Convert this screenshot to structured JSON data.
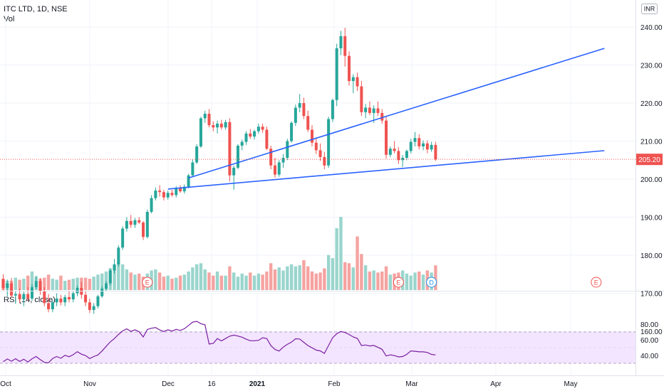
{
  "header": {
    "symbol": "ITC LTD, 1D, NSE",
    "volume_label": "Vol",
    "currency_badge": "INR"
  },
  "rsi_panel": {
    "label": "RSI (14, close)"
  },
  "chart_data": [
    {
      "type": "candlestick",
      "title": "ITC LTD, 1D, NSE",
      "y_axis_ticks": [
        "240.00",
        "230.00",
        "220.00",
        "210.00",
        "200.00",
        "190.00",
        "180.00",
        "170.00",
        "160.00"
      ],
      "x_axis_ticks": [
        "Oct",
        "Nov",
        "Dec",
        "16",
        "2021",
        "Feb",
        "Mar",
        "Apr",
        "May"
      ],
      "ylim": [
        155,
        244
      ],
      "last_price_label": "205.20",
      "last_price": 205.2,
      "grid": true,
      "colors": {
        "up": "#26a69a",
        "down": "#ef5350",
        "trendline": "#2962ff",
        "price_line": "#ef5350"
      },
      "ohlc": [
        [
          173.8,
          175.0,
          170.8,
          171.4
        ],
        [
          171.4,
          173.6,
          169.2,
          172.6
        ],
        [
          172.6,
          174.0,
          168.8,
          169.4
        ],
        [
          169.4,
          170.6,
          167.2,
          169.8
        ],
        [
          169.8,
          171.2,
          167.4,
          168.4
        ],
        [
          168.4,
          170.4,
          166.6,
          169.8
        ],
        [
          169.8,
          171.6,
          168.0,
          168.6
        ],
        [
          168.6,
          172.4,
          168.0,
          171.6
        ],
        [
          171.6,
          174.6,
          171.0,
          173.2
        ],
        [
          173.2,
          174.0,
          169.6,
          170.6
        ],
        [
          170.6,
          171.6,
          166.6,
          167.4
        ],
        [
          167.4,
          169.8,
          165.0,
          165.8
        ],
        [
          165.8,
          168.2,
          165.0,
          167.6
        ],
        [
          167.6,
          170.0,
          166.6,
          168.6
        ],
        [
          168.6,
          169.6,
          166.8,
          167.6
        ],
        [
          167.6,
          169.6,
          166.6,
          169.0
        ],
        [
          169.0,
          170.6,
          167.6,
          168.4
        ],
        [
          168.4,
          170.6,
          167.6,
          170.0
        ],
        [
          170.0,
          172.0,
          169.2,
          171.4
        ],
        [
          171.4,
          173.0,
          168.6,
          169.6
        ],
        [
          169.6,
          170.6,
          166.6,
          167.6
        ],
        [
          167.6,
          168.6,
          164.8,
          165.6
        ],
        [
          165.6,
          167.4,
          164.6,
          166.6
        ],
        [
          166.6,
          169.6,
          166.0,
          169.2
        ],
        [
          169.2,
          171.8,
          168.8,
          171.2
        ],
        [
          171.2,
          173.2,
          170.6,
          172.6
        ],
        [
          172.6,
          176.6,
          172.0,
          176.0
        ],
        [
          176.0,
          179.0,
          175.2,
          177.6
        ],
        [
          177.6,
          182.6,
          177.0,
          182.0
        ],
        [
          182.0,
          187.6,
          181.4,
          187.0
        ],
        [
          187.0,
          190.0,
          186.2,
          189.0
        ],
        [
          189.0,
          190.6,
          187.2,
          188.0
        ],
        [
          188.0,
          189.8,
          187.2,
          189.2
        ],
        [
          189.2,
          190.0,
          188.2,
          188.6
        ],
        [
          188.6,
          189.0,
          184.0,
          184.8
        ],
        [
          184.8,
          192.0,
          184.4,
          191.4
        ],
        [
          191.4,
          195.8,
          191.0,
          195.0
        ],
        [
          195.0,
          197.8,
          194.4,
          197.0
        ],
        [
          197.0,
          198.4,
          195.4,
          196.6
        ],
        [
          196.6,
          197.2,
          194.4,
          195.2
        ],
        [
          195.2,
          197.0,
          194.6,
          196.4
        ],
        [
          196.4,
          197.2,
          195.4,
          195.8
        ],
        [
          195.8,
          198.2,
          195.2,
          197.6
        ],
        [
          197.6,
          198.4,
          196.4,
          196.8
        ],
        [
          196.8,
          198.6,
          196.2,
          198.0
        ],
        [
          198.0,
          201.4,
          197.6,
          201.0
        ],
        [
          201.0,
          205.2,
          200.6,
          204.4
        ],
        [
          204.4,
          209.2,
          204.0,
          208.6
        ],
        [
          208.6,
          216.4,
          208.2,
          216.0
        ],
        [
          216.0,
          218.0,
          214.8,
          217.2
        ],
        [
          217.2,
          218.4,
          213.6,
          214.2
        ],
        [
          214.2,
          215.2,
          212.6,
          213.6
        ],
        [
          213.6,
          215.4,
          212.0,
          214.6
        ],
        [
          214.6,
          215.6,
          213.0,
          213.6
        ],
        [
          213.6,
          215.6,
          213.0,
          215.0
        ],
        [
          215.0,
          216.0,
          199.4,
          201.0
        ],
        [
          201.0,
          203.6,
          197.2,
          203.0
        ],
        [
          203.0,
          209.2,
          202.6,
          208.8
        ],
        [
          208.8,
          210.4,
          207.6,
          209.8
        ],
        [
          209.8,
          212.6,
          209.0,
          212.0
        ],
        [
          212.0,
          213.2,
          210.6,
          211.2
        ],
        [
          211.2,
          213.0,
          210.4,
          212.6
        ],
        [
          212.6,
          214.6,
          212.0,
          213.8
        ],
        [
          213.8,
          214.6,
          212.2,
          213.0
        ],
        [
          213.0,
          213.8,
          207.6,
          208.0
        ],
        [
          208.0,
          208.8,
          202.6,
          203.6
        ],
        [
          203.6,
          205.6,
          200.4,
          201.2
        ],
        [
          201.2,
          205.0,
          200.6,
          204.4
        ],
        [
          204.4,
          206.6,
          203.0,
          205.6
        ],
        [
          205.6,
          210.6,
          205.0,
          210.0
        ],
        [
          210.0,
          215.2,
          209.6,
          214.8
        ],
        [
          214.8,
          219.6,
          214.0,
          218.8
        ],
        [
          218.8,
          222.4,
          217.6,
          220.0
        ],
        [
          220.0,
          221.4,
          215.8,
          216.6
        ],
        [
          216.6,
          218.0,
          212.4,
          213.0
        ],
        [
          213.0,
          214.2,
          208.6,
          209.6
        ],
        [
          209.6,
          211.0,
          206.6,
          207.6
        ],
        [
          207.6,
          209.4,
          204.8,
          205.8
        ],
        [
          205.8,
          207.2,
          202.6,
          203.6
        ],
        [
          203.6,
          216.4,
          203.0,
          215.8
        ],
        [
          215.8,
          221.2,
          215.0,
          220.8
        ],
        [
          220.8,
          235.6,
          219.2,
          234.4
        ],
        [
          234.4,
          239.0,
          232.6,
          237.6
        ],
        [
          237.6,
          239.8,
          229.6,
          232.4
        ],
        [
          232.4,
          233.6,
          224.6,
          225.8
        ],
        [
          225.8,
          227.6,
          222.6,
          226.8
        ],
        [
          226.8,
          228.0,
          223.2,
          224.4
        ],
        [
          224.4,
          225.8,
          216.6,
          217.6
        ],
        [
          217.6,
          219.8,
          216.0,
          218.8
        ],
        [
          218.8,
          220.4,
          216.8,
          217.4
        ],
        [
          217.4,
          219.4,
          214.8,
          218.6
        ],
        [
          218.6,
          220.4,
          216.6,
          217.4
        ],
        [
          217.4,
          218.4,
          214.6,
          215.4
        ],
        [
          215.4,
          216.4,
          205.4,
          206.4
        ],
        [
          206.4,
          208.6,
          205.8,
          208.0
        ],
        [
          208.0,
          210.0,
          206.8,
          207.4
        ],
        [
          207.4,
          208.4,
          204.0,
          205.0
        ],
        [
          205.0,
          206.4,
          203.2,
          205.6
        ],
        [
          205.6,
          207.8,
          205.0,
          207.4
        ],
        [
          207.4,
          210.6,
          206.8,
          209.8
        ],
        [
          209.8,
          212.4,
          208.6,
          210.8
        ],
        [
          210.8,
          211.8,
          207.8,
          208.6
        ],
        [
          208.6,
          210.2,
          207.6,
          209.4
        ],
        [
          209.4,
          210.2,
          206.8,
          207.8
        ],
        [
          207.8,
          209.8,
          207.2,
          209.0
        ],
        [
          209.0,
          209.8,
          204.8,
          205.2
        ]
      ],
      "volume": [
        10,
        9,
        9,
        12,
        10,
        11,
        14,
        18,
        13,
        11,
        12,
        15,
        11,
        10,
        14,
        9,
        10,
        11,
        12,
        12,
        12,
        11,
        13,
        15,
        16,
        18,
        21,
        24,
        27,
        25,
        20,
        17,
        15,
        16,
        13,
        16,
        19,
        20,
        17,
        13,
        14,
        11,
        12,
        14,
        15,
        18,
        22,
        25,
        26,
        20,
        17,
        14,
        18,
        14,
        14,
        23,
        17,
        13,
        16,
        14,
        17,
        14,
        16,
        15,
        18,
        26,
        20,
        22,
        19,
        23,
        25,
        23,
        24,
        29,
        23,
        18,
        16,
        17,
        21,
        34,
        31,
        60,
        71,
        27,
        26,
        22,
        52,
        35,
        24,
        18,
        19,
        17,
        18,
        23,
        15,
        16,
        17,
        19,
        16,
        14,
        17,
        18,
        15,
        19,
        17,
        24
      ],
      "trendlines": [
        {
          "from": {
            "index": 45,
            "price": 200.3
          },
          "to": {
            "index": 146,
            "price": 234.4
          }
        },
        {
          "from": {
            "index": 40,
            "price": 197.4
          },
          "to": {
            "index": 146,
            "price": 207.5
          }
        }
      ],
      "event_markers": [
        {
          "index": 35,
          "label": "E"
        },
        {
          "index": 96,
          "label": "E"
        },
        {
          "index": 104,
          "label": "D"
        },
        {
          "index": 144,
          "label": "E"
        }
      ]
    },
    {
      "type": "line",
      "title": "RSI (14, close)",
      "y_axis_ticks": [
        "80.00",
        "60.00",
        "40.00"
      ],
      "ylim": [
        26,
        90
      ],
      "band": [
        30,
        70
      ],
      "colors": {
        "line": "#7b1fa2",
        "band_fill": "#f3e5ff",
        "band_border": "#b9a0c8"
      },
      "values": [
        32.0,
        35.5,
        32.6,
        35.8,
        32.4,
        35.2,
        31.6,
        35.8,
        38.6,
        34.6,
        31.2,
        30.6,
        36.2,
        38.6,
        36.4,
        40.2,
        38.4,
        41.0,
        44.8,
        41.6,
        39.8,
        36.0,
        38.6,
        40.6,
        45.6,
        51.6,
        57.4,
        61.6,
        66.8,
        71.4,
        74.0,
        70.8,
        72.8,
        70.4,
        63.6,
        73.2,
        74.8,
        75.6,
        72.6,
        70.6,
        72.8,
        71.2,
        73.4,
        72.0,
        74.2,
        78.4,
        82.6,
        83.6,
        80.6,
        79.2,
        54.6,
        55.4,
        61.6,
        58.6,
        61.6,
        64.6,
        66.0,
        64.8,
        63.4,
        60.8,
        58.8,
        58.8,
        59.4,
        62.6,
        61.6,
        52.6,
        47.6,
        45.6,
        50.6,
        54.2,
        57.0,
        61.4,
        61.0,
        56.8,
        52.6,
        49.8,
        46.8,
        45.8,
        42.6,
        52.6,
        62.6,
        67.8,
        70.6,
        69.4,
        66.8,
        63.6,
        61.8,
        52.6,
        53.4,
        52.2,
        52.8,
        50.4,
        47.8,
        39.4,
        40.8,
        39.8,
        38.2,
        38.6,
        41.4,
        45.8,
        45.4,
        44.6,
        44.6,
        43.8,
        41.4,
        40.6
      ]
    }
  ]
}
